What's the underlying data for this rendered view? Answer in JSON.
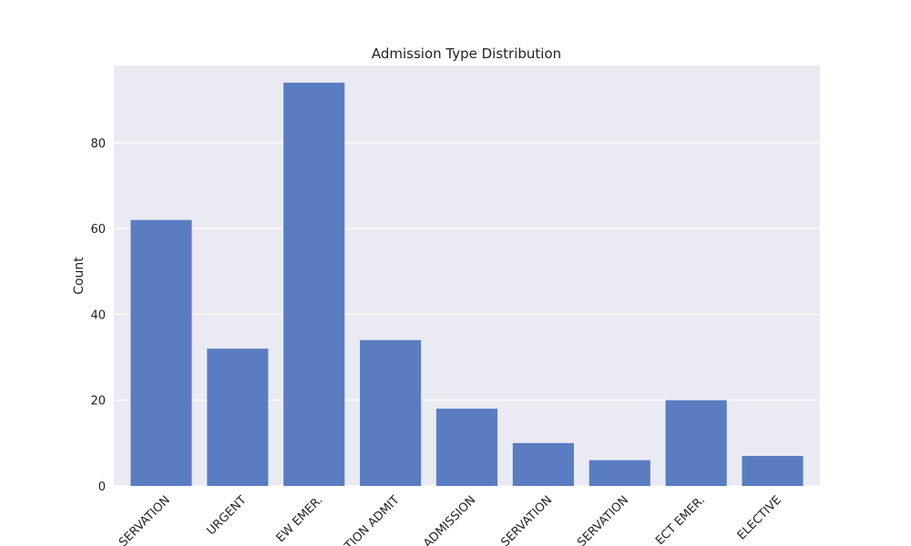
{
  "chart_data": {
    "type": "bar",
    "title": "Admission Type Distribution",
    "xlabel": "",
    "ylabel": "Count",
    "categories": [
      "SERVATION",
      "URGENT",
      "EW EMER.",
      "TION ADMIT",
      "ADMISSION",
      "SERVATION",
      "SERVATION",
      "ECT EMER.",
      "ELECTIVE"
    ],
    "values": [
      62,
      32,
      94,
      34,
      18,
      10,
      6,
      20,
      7
    ],
    "ylim": [
      0,
      98
    ],
    "yticks": [
      "0",
      "20",
      "40",
      "60",
      "80"
    ],
    "grid": true,
    "legend": "none",
    "colors": {
      "bar": "#5a7dc2",
      "background": "#eaeaf2",
      "grid": "#ffffff"
    }
  }
}
